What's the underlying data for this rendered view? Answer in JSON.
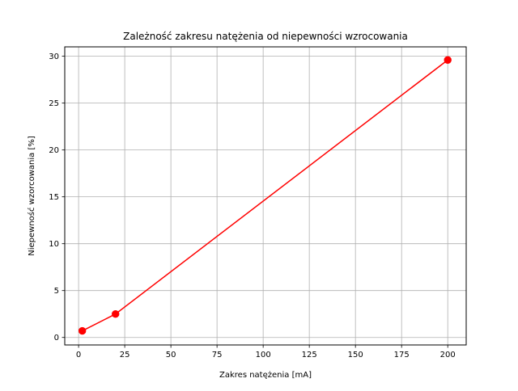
{
  "chart_data": {
    "type": "line",
    "title": "Zależność zakresu natężenia od niepewności wzrocowania",
    "xlabel": "Zakres natężenia [mA]",
    "ylabel": "Niepewność wzorcowania [%]",
    "xlim": [
      -7.5,
      210
    ],
    "ylim": [
      -0.8,
      31.0
    ],
    "xticks": [
      0,
      25,
      50,
      75,
      100,
      125,
      150,
      175,
      200
    ],
    "yticks": [
      0,
      5,
      10,
      15,
      20,
      25,
      30
    ],
    "xtick_labels": [
      "0",
      "25",
      "50",
      "75",
      "100",
      "125",
      "150",
      "175",
      "200"
    ],
    "ytick_labels": [
      "0",
      "5",
      "10",
      "15",
      "20",
      "25",
      "30"
    ],
    "grid": true,
    "legend": false,
    "series": [
      {
        "color": "#ff0000",
        "marker": "circle",
        "x": [
          2,
          20,
          200
        ],
        "y": [
          0.7,
          2.5,
          29.6
        ]
      }
    ]
  }
}
